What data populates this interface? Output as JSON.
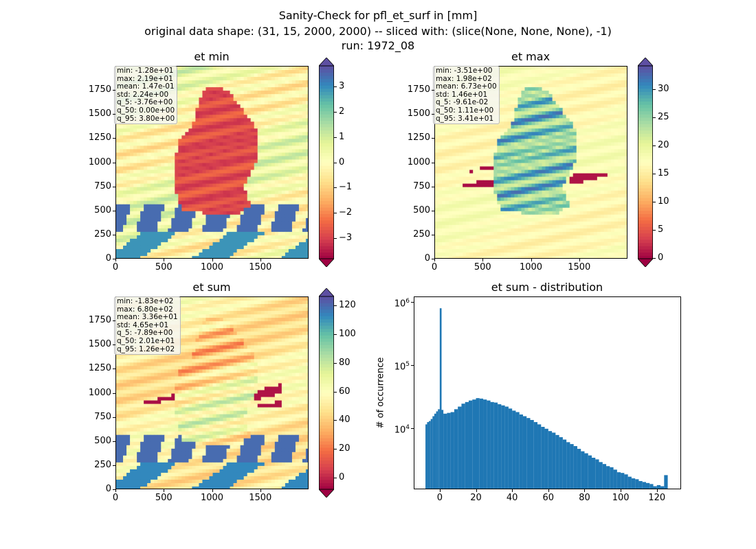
{
  "suptitle": {
    "line1": "Sanity-Check for pfl_et_surf in [mm]",
    "line2": "original data shape: (31, 15, 2000, 2000) -- sliced with: (slice(None, None, None), -1)",
    "line3": "run: 1972_08"
  },
  "colors": {
    "hist_bar": "#1f77b4",
    "cmap": [
      "#9e0142",
      "#d53e4f",
      "#f46d43",
      "#fdae61",
      "#fee08b",
      "#ffffbf",
      "#e6f598",
      "#abdda4",
      "#66c2a5",
      "#3288bd",
      "#5e4fa2"
    ]
  },
  "panels": {
    "et_min": {
      "title": "et min",
      "stats": [
        "min: -1.28e+01",
        "max: 2.19e+01",
        "mean: 1.47e-01",
        "std: 2.24e+00",
        "q_5: -3.76e+00",
        "q_50: 0.00e+00",
        "q_95: 3.80e+00"
      ],
      "xticks": [
        "0",
        "500",
        "1000",
        "1500"
      ],
      "yticks": [
        "0",
        "250",
        "500",
        "750",
        "1000",
        "1250",
        "1500",
        "1750"
      ],
      "colorbar_ticks": [
        "−3",
        "−2",
        "−1",
        "0",
        "1",
        "2",
        "3"
      ],
      "colorbar_range": [
        -3.8,
        3.8
      ]
    },
    "et_max": {
      "title": "et max",
      "stats": [
        "min: -3.51e+00",
        "max: 1.98e+02",
        "mean: 6.73e+00",
        "std: 1.46e+01",
        "q_5: -9.61e-02",
        "q_50: 1.11e+00",
        "q_95: 3.41e+01"
      ],
      "xticks": [
        "0",
        "500",
        "1000",
        "1500"
      ],
      "yticks": [
        "0",
        "250",
        "500",
        "750",
        "1000",
        "1250",
        "1500",
        "1750"
      ],
      "colorbar_ticks": [
        "0",
        "5",
        "10",
        "15",
        "20",
        "25",
        "30"
      ],
      "colorbar_range": [
        -0.1,
        34.1
      ]
    },
    "et_sum": {
      "title": "et sum",
      "stats": [
        "min: -1.83e+02",
        "max: 6.80e+02",
        "mean: 3.36e+01",
        "std: 4.65e+01",
        "q_5: -7.89e+00",
        "q_50: 2.01e+01",
        "q_95: 1.26e+02"
      ],
      "xticks": [
        "0",
        "500",
        "1000",
        "1500"
      ],
      "yticks": [
        "0",
        "250",
        "500",
        "750",
        "1000",
        "1250",
        "1500",
        "1750"
      ],
      "colorbar_ticks": [
        "0",
        "20",
        "40",
        "60",
        "80",
        "100",
        "120"
      ],
      "colorbar_range": [
        -7.9,
        126
      ]
    },
    "hist": {
      "title": "et sum - distribution",
      "ylabel": "# of occurrence",
      "xticks": [
        "0",
        "20",
        "40",
        "60",
        "80",
        "100",
        "120"
      ],
      "ytick_base": "10",
      "ytick_exps": [
        "4",
        "5",
        "6"
      ]
    }
  },
  "chart_data": [
    {
      "type": "heatmap",
      "title": "et min",
      "x_range": [
        0,
        2000
      ],
      "y_range": [
        0,
        2000
      ],
      "color_range": [
        -3.8,
        3.8
      ],
      "cmap": "Spectral"
    },
    {
      "type": "heatmap",
      "title": "et max",
      "x_range": [
        0,
        2000
      ],
      "y_range": [
        0,
        2000
      ],
      "color_range": [
        -0.1,
        34.1
      ],
      "cmap": "Spectral"
    },
    {
      "type": "heatmap",
      "title": "et sum",
      "x_range": [
        0,
        2000
      ],
      "y_range": [
        0,
        2000
      ],
      "color_range": [
        -7.9,
        126
      ],
      "cmap": "Spectral"
    },
    {
      "type": "bar",
      "title": "et sum - distribution",
      "ylabel": "# of occurrence",
      "yscale": "log",
      "xlim": [
        -14,
        133
      ],
      "ylim": [
        1100,
        1200000
      ],
      "series": [
        {
          "bins": [
            -7.9,
            -7,
            -6,
            -5,
            -4,
            -3,
            -2,
            -1,
            0,
            1,
            2,
            4,
            6,
            8,
            10,
            12,
            14,
            16,
            18,
            20,
            22,
            24,
            26,
            28,
            30,
            32,
            34,
            36,
            38,
            40,
            42,
            44,
            46,
            48,
            50,
            52,
            54,
            56,
            58,
            60,
            62,
            64,
            66,
            68,
            70,
            72,
            74,
            76,
            78,
            80,
            82,
            84,
            86,
            88,
            90,
            92,
            94,
            96,
            98,
            100,
            102,
            104,
            106,
            108,
            110,
            112,
            114,
            116,
            118,
            120,
            122,
            124,
            126
          ],
          "counts": [
            11500,
            12500,
            13000,
            14000,
            15500,
            17000,
            18500,
            20000,
            800000,
            19500,
            17000,
            17500,
            18000,
            20000,
            22000,
            24500,
            26000,
            27500,
            28500,
            30000,
            29500,
            28500,
            27500,
            26000,
            25500,
            24000,
            23000,
            22000,
            20500,
            19000,
            18000,
            16500,
            15500,
            14500,
            13500,
            12500,
            11500,
            10500,
            9800,
            9000,
            8500,
            7800,
            7200,
            6600,
            6000,
            5600,
            5200,
            4700,
            4300,
            4000,
            3700,
            3400,
            3200,
            2900,
            2700,
            2500,
            2400,
            2200,
            2000,
            1950,
            1850,
            1700,
            1600,
            1550,
            1450,
            1400,
            1350,
            1300,
            1200,
            1250,
            1200,
            1800
          ]
        }
      ]
    }
  ]
}
